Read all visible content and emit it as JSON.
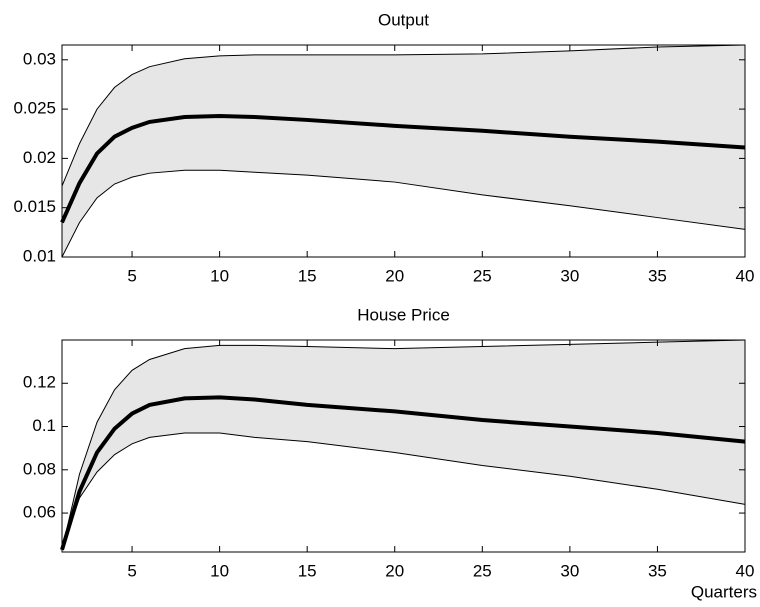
{
  "chart_data": [
    {
      "type": "band-line",
      "title": "Output",
      "x": [
        1,
        2,
        3,
        4,
        5,
        6,
        8,
        10,
        12,
        15,
        20,
        25,
        30,
        35,
        40
      ],
      "values": [
        0.0135,
        0.0175,
        0.0205,
        0.0222,
        0.0231,
        0.0237,
        0.0242,
        0.0243,
        0.0242,
        0.0239,
        0.0233,
        0.0228,
        0.0222,
        0.0217,
        0.0211
      ],
      "color": "#000000",
      "band": {
        "upper": [
          0.0172,
          0.0215,
          0.025,
          0.0272,
          0.0285,
          0.0293,
          0.0301,
          0.0304,
          0.0305,
          0.0305,
          0.0305,
          0.0306,
          0.0309,
          0.0313,
          0.0315
        ],
        "lower": [
          0.01,
          0.0135,
          0.016,
          0.0174,
          0.0181,
          0.0185,
          0.0188,
          0.0188,
          0.0186,
          0.0183,
          0.0176,
          0.0163,
          0.0152,
          0.014,
          0.0128
        ],
        "color": "#e6e6e6"
      },
      "xlim": [
        1,
        40
      ],
      "xticks": [
        5,
        10,
        15,
        20,
        25,
        30,
        35,
        40
      ],
      "ylim": [
        0.01,
        0.0315
      ],
      "yticks": [
        0.01,
        0.015,
        0.02,
        0.025,
        0.03
      ]
    },
    {
      "type": "band-line",
      "title": "House Price",
      "x_label": "Quarters",
      "x": [
        1,
        2,
        3,
        4,
        5,
        6,
        8,
        10,
        12,
        15,
        20,
        25,
        30,
        35,
        40
      ],
      "values": [
        0.043,
        0.07,
        0.088,
        0.099,
        0.106,
        0.11,
        0.113,
        0.1135,
        0.1125,
        0.11,
        0.107,
        0.103,
        0.1,
        0.097,
        0.093
      ],
      "color": "#000000",
      "band": {
        "upper": [
          0.043,
          0.078,
          0.102,
          0.117,
          0.126,
          0.131,
          0.136,
          0.1375,
          0.1375,
          0.137,
          0.136,
          0.137,
          0.138,
          0.139,
          0.14
        ],
        "lower": [
          0.043,
          0.067,
          0.079,
          0.087,
          0.092,
          0.095,
          0.097,
          0.097,
          0.095,
          0.093,
          0.088,
          0.082,
          0.077,
          0.071,
          0.064
        ],
        "color": "#e6e6e6"
      },
      "xlim": [
        1,
        40
      ],
      "xticks": [
        5,
        10,
        15,
        20,
        25,
        30,
        35,
        40
      ],
      "ylim": [
        0.042,
        0.14
      ],
      "yticks": [
        0.06,
        0.08,
        0.1,
        0.12
      ]
    }
  ]
}
